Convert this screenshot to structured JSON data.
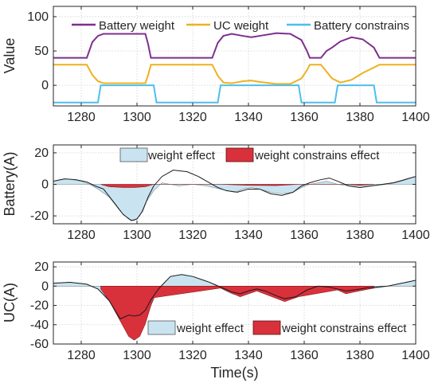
{
  "chart_data": [
    {
      "type": "line",
      "ylabel": "Value",
      "xlim": [
        1270,
        1400
      ],
      "ylim": [
        -30,
        115
      ],
      "xticks": [
        "1280",
        "1300",
        "1320",
        "1340",
        "1360",
        "1380",
        "1400"
      ],
      "yticks": [
        "0",
        "50",
        "100"
      ],
      "grid": true,
      "legend_position": "top",
      "series": [
        {
          "name": "Battery weight",
          "color": "#7e2f8e",
          "points": [
            [
              1270,
              40
            ],
            [
              1282,
              40
            ],
            [
              1284,
              63
            ],
            [
              1286,
              72
            ],
            [
              1288,
              75
            ],
            [
              1303,
              75
            ],
            [
              1304,
              60
            ],
            [
              1305,
              40
            ],
            [
              1327,
              40
            ],
            [
              1329,
              62
            ],
            [
              1331,
              72
            ],
            [
              1334,
              75
            ],
            [
              1338,
              72
            ],
            [
              1341,
              70
            ],
            [
              1344,
              72
            ],
            [
              1350,
              76
            ],
            [
              1355,
              75
            ],
            [
              1359,
              66
            ],
            [
              1361,
              50
            ],
            [
              1362,
              40
            ],
            [
              1366,
              40
            ],
            [
              1368,
              50
            ],
            [
              1370,
              55
            ],
            [
              1373,
              64
            ],
            [
              1377,
              70
            ],
            [
              1381,
              67
            ],
            [
              1385,
              55
            ],
            [
              1387,
              40
            ],
            [
              1400,
              40
            ]
          ]
        },
        {
          "name": "UC weight",
          "color": "#edb120",
          "points": [
            [
              1270,
              30
            ],
            [
              1282,
              30
            ],
            [
              1284,
              15
            ],
            [
              1286,
              6
            ],
            [
              1288,
              3
            ],
            [
              1303,
              3
            ],
            [
              1304,
              15
            ],
            [
              1305,
              30
            ],
            [
              1327,
              30
            ],
            [
              1329,
              14
            ],
            [
              1331,
              4
            ],
            [
              1334,
              3
            ],
            [
              1338,
              6
            ],
            [
              1341,
              7
            ],
            [
              1344,
              5
            ],
            [
              1350,
              2
            ],
            [
              1355,
              2
            ],
            [
              1359,
              10
            ],
            [
              1361,
              22
            ],
            [
              1362,
              30
            ],
            [
              1366,
              30
            ],
            [
              1368,
              20
            ],
            [
              1370,
              10
            ],
            [
              1373,
              4
            ],
            [
              1377,
              8
            ],
            [
              1381,
              18
            ],
            [
              1385,
              26
            ],
            [
              1387,
              30
            ],
            [
              1400,
              30
            ]
          ]
        },
        {
          "name": "Battery constrains",
          "color": "#4dbeee",
          "points": [
            [
              1270,
              -25
            ],
            [
              1286,
              -25
            ],
            [
              1287,
              0
            ],
            [
              1306,
              0
            ],
            [
              1307,
              -25
            ],
            [
              1329,
              -25
            ],
            [
              1330,
              0
            ],
            [
              1358,
              0
            ],
            [
              1359,
              -25
            ],
            [
              1371,
              -25
            ],
            [
              1372,
              0
            ],
            [
              1385,
              0
            ],
            [
              1386,
              -25
            ],
            [
              1400,
              -25
            ]
          ]
        }
      ]
    },
    {
      "type": "area",
      "ylabel": "Battery(A)",
      "xlim": [
        1270,
        1400
      ],
      "ylim": [
        -25,
        25
      ],
      "xticks": [
        "1280",
        "1300",
        "1320",
        "1340",
        "1360",
        "1380",
        "1400"
      ],
      "yticks": [
        "-20",
        "0",
        "20"
      ],
      "grid": true,
      "legend_position": "top",
      "legend": [
        "weight effect",
        "weight constrains effect"
      ],
      "series": [
        {
          "name": "weight effect",
          "color": "#c9e4f0",
          "points": [
            [
              1270,
              2
            ],
            [
              1275,
              3.5
            ],
            [
              1280,
              2
            ],
            [
              1283,
              0
            ],
            [
              1286,
              -3
            ],
            [
              1290,
              -8
            ],
            [
              1294,
              -17
            ],
            [
              1297,
              -22
            ],
            [
              1299,
              -23
            ],
            [
              1301,
              -20
            ],
            [
              1303,
              -12
            ],
            [
              1306,
              -4
            ],
            [
              1309,
              1
            ],
            [
              1312,
              0
            ],
            [
              1315,
              -1
            ],
            [
              1320,
              0
            ],
            [
              1325,
              -1
            ],
            [
              1330,
              -3
            ],
            [
              1335,
              -5
            ],
            [
              1338,
              -3
            ],
            [
              1341,
              -2
            ],
            [
              1344,
              -3
            ],
            [
              1348,
              -5
            ],
            [
              1352,
              -6
            ],
            [
              1356,
              -5
            ],
            [
              1359,
              -2
            ],
            [
              1362,
              0
            ],
            [
              1368,
              2
            ],
            [
              1372,
              0
            ],
            [
              1376,
              -1
            ],
            [
              1380,
              -2
            ],
            [
              1384,
              -1
            ],
            [
              1390,
              0
            ],
            [
              1395,
              2
            ],
            [
              1400,
              5
            ]
          ]
        },
        {
          "name": "weight constrains effect",
          "color": "#d9313c",
          "points": [
            [
              1287,
              0
            ],
            [
              1290,
              -1.5
            ],
            [
              1295,
              -2
            ],
            [
              1299,
              -2
            ],
            [
              1303,
              -1.5
            ],
            [
              1306,
              0
            ],
            [
              1330,
              0
            ],
            [
              1340,
              -0.6
            ],
            [
              1350,
              -0.8
            ],
            [
              1358,
              0
            ],
            [
              1375,
              0
            ],
            [
              1380,
              -0.6
            ],
            [
              1385,
              0
            ]
          ]
        }
      ],
      "signal": {
        "color": "#1a1a1a",
        "points": [
          [
            1270,
            2
          ],
          [
            1274,
            3.5
          ],
          [
            1278,
            3
          ],
          [
            1282,
            1.5
          ],
          [
            1285,
            -1
          ],
          [
            1288,
            -3
          ],
          [
            1292,
            -12
          ],
          [
            1295,
            -19
          ],
          [
            1298,
            -23
          ],
          [
            1300,
            -22
          ],
          [
            1302,
            -17
          ],
          [
            1304,
            -8
          ],
          [
            1306,
            -1
          ],
          [
            1309,
            5
          ],
          [
            1313,
            9
          ],
          [
            1318,
            8
          ],
          [
            1322,
            5
          ],
          [
            1326,
            1
          ],
          [
            1329,
            -2
          ],
          [
            1332,
            -4
          ],
          [
            1336,
            -5
          ],
          [
            1340,
            -3
          ],
          [
            1344,
            -3
          ],
          [
            1348,
            -6
          ],
          [
            1352,
            -7
          ],
          [
            1356,
            -5
          ],
          [
            1359,
            -1
          ],
          [
            1362,
            1
          ],
          [
            1366,
            3
          ],
          [
            1369,
            4
          ],
          [
            1372,
            2
          ],
          [
            1376,
            -1
          ],
          [
            1380,
            -2
          ],
          [
            1384,
            -1
          ],
          [
            1388,
            0
          ],
          [
            1392,
            1
          ],
          [
            1396,
            3
          ],
          [
            1400,
            5
          ]
        ]
      }
    },
    {
      "type": "area",
      "ylabel": "UC(A)",
      "xlabel": "Time(s)",
      "xlim": [
        1270,
        1400
      ],
      "ylim": [
        -60,
        25
      ],
      "xticks": [
        "1280",
        "1300",
        "1320",
        "1340",
        "1360",
        "1380",
        "1400"
      ],
      "yticks": [
        "-60",
        "-40",
        "-20",
        "0",
        "20"
      ],
      "grid": true,
      "legend_position": "bottom-right",
      "legend": [
        "weight effect",
        "weight constrains effect"
      ],
      "series": [
        {
          "name": "weight effect",
          "color": "#c9e4f0",
          "points": [
            [
              1270,
              3
            ],
            [
              1276,
              4
            ],
            [
              1282,
              2
            ],
            [
              1286,
              -3
            ],
            [
              1290,
              -15
            ],
            [
              1294,
              -35
            ],
            [
              1297,
              -50
            ],
            [
              1299,
              -54
            ],
            [
              1301,
              -50
            ],
            [
              1303,
              -38
            ],
            [
              1305,
              -20
            ],
            [
              1308,
              -2
            ],
            [
              1312,
              10
            ],
            [
              1316,
              12
            ],
            [
              1320,
              10
            ],
            [
              1326,
              4
            ],
            [
              1330,
              -2
            ],
            [
              1334,
              -8
            ],
            [
              1337,
              -10
            ],
            [
              1340,
              -6
            ],
            [
              1343,
              -4
            ],
            [
              1346,
              -6
            ],
            [
              1350,
              -12
            ],
            [
              1353,
              -15
            ],
            [
              1357,
              -12
            ],
            [
              1361,
              -5
            ],
            [
              1365,
              0
            ],
            [
              1369,
              -1
            ],
            [
              1372,
              -4
            ],
            [
              1375,
              -7
            ],
            [
              1378,
              -5
            ],
            [
              1382,
              -3
            ],
            [
              1386,
              -2
            ],
            [
              1390,
              0
            ],
            [
              1395,
              3
            ],
            [
              1400,
              6
            ]
          ]
        },
        {
          "name": "weight constrains effect",
          "color": "#d9313c",
          "points": [
            [
              1287,
              -3
            ],
            [
              1290,
              -15
            ],
            [
              1294,
              -36
            ],
            [
              1297,
              -52
            ],
            [
              1299,
              -56
            ],
            [
              1301,
              -52
            ],
            [
              1303,
              -39
            ],
            [
              1305,
              -20
            ],
            [
              1306,
              -12
            ],
            [
              1330,
              -2
            ],
            [
              1337,
              -11
            ],
            [
              1343,
              -5
            ],
            [
              1353,
              -16
            ],
            [
              1358,
              -11
            ],
            [
              1372,
              -4
            ],
            [
              1375,
              -8
            ],
            [
              1378,
              -6
            ],
            [
              1385,
              -2
            ]
          ]
        }
      ],
      "signal": {
        "color": "#1a1a1a",
        "points": [
          [
            1270,
            3
          ],
          [
            1276,
            4
          ],
          [
            1282,
            2
          ],
          [
            1286,
            -3
          ],
          [
            1290,
            -15
          ],
          [
            1294,
            -34
          ],
          [
            1297,
            -30
          ],
          [
            1299,
            -31
          ],
          [
            1301,
            -30
          ],
          [
            1303,
            -25
          ],
          [
            1305,
            -14
          ],
          [
            1308,
            -2
          ],
          [
            1312,
            10
          ],
          [
            1316,
            12
          ],
          [
            1320,
            10
          ],
          [
            1326,
            4
          ],
          [
            1330,
            -1
          ],
          [
            1334,
            -6
          ],
          [
            1337,
            -8
          ],
          [
            1340,
            -5
          ],
          [
            1343,
            -3
          ],
          [
            1346,
            -5
          ],
          [
            1350,
            -10
          ],
          [
            1353,
            -13
          ],
          [
            1357,
            -11
          ],
          [
            1361,
            -4
          ],
          [
            1365,
            0
          ],
          [
            1369,
            -1
          ],
          [
            1372,
            -3
          ],
          [
            1375,
            -5
          ],
          [
            1378,
            -4
          ],
          [
            1382,
            -2
          ],
          [
            1386,
            -1
          ],
          [
            1390,
            0
          ],
          [
            1395,
            3
          ],
          [
            1400,
            6
          ]
        ]
      }
    }
  ]
}
